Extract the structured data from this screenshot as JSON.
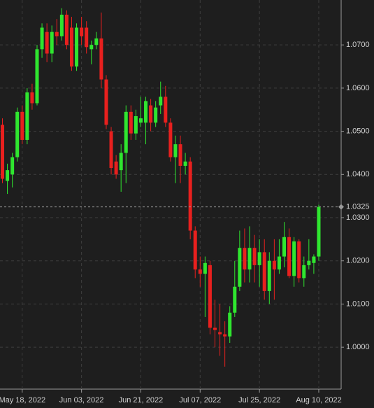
{
  "chart_data": {
    "type": "candlestick",
    "x": [
      "2022-05-12",
      "2022-05-13",
      "2022-05-16",
      "2022-05-17",
      "2022-05-18",
      "2022-05-19",
      "2022-05-20",
      "2022-05-23",
      "2022-05-24",
      "2022-05-25",
      "2022-05-26",
      "2022-05-27",
      "2022-05-30",
      "2022-05-31",
      "2022-06-01",
      "2022-06-02",
      "2022-06-03",
      "2022-06-06",
      "2022-06-07",
      "2022-06-08",
      "2022-06-09",
      "2022-06-10",
      "2022-06-13",
      "2022-06-14",
      "2022-06-15",
      "2022-06-16",
      "2022-06-17",
      "2022-06-20",
      "2022-06-21",
      "2022-06-22",
      "2022-06-23",
      "2022-06-24",
      "2022-06-27",
      "2022-06-28",
      "2022-06-29",
      "2022-06-30",
      "2022-07-01",
      "2022-07-04",
      "2022-07-05",
      "2022-07-06",
      "2022-07-07",
      "2022-07-08",
      "2022-07-11",
      "2022-07-12",
      "2022-07-13",
      "2022-07-14",
      "2022-07-15",
      "2022-07-18",
      "2022-07-19",
      "2022-07-20",
      "2022-07-21",
      "2022-07-22",
      "2022-07-25",
      "2022-07-26",
      "2022-07-27",
      "2022-07-28",
      "2022-07-29",
      "2022-08-01",
      "2022-08-02",
      "2022-08-03",
      "2022-08-04",
      "2022-08-05",
      "2022-08-08",
      "2022-08-09",
      "2022-08-10"
    ],
    "open": [
      1.0515,
      1.0385,
      1.04,
      1.044,
      1.0545,
      1.048,
      1.059,
      1.0565,
      1.069,
      1.073,
      1.068,
      1.073,
      1.072,
      1.077,
      1.074,
      1.065,
      1.074,
      1.074,
      1.069,
      1.07,
      1.0715,
      1.062,
      1.05,
      1.043,
      1.041,
      1.045,
      1.0545,
      1.0495,
      1.052,
      1.052,
      1.056,
      1.052,
      1.056,
      1.058,
      1.052,
      1.044,
      1.047,
      1.042,
      1.043,
      1.027,
      1.018,
      1.017,
      1.019,
      1.0045,
      1.0035,
      1.003,
      1.0025,
      1.008,
      1.014,
      1.023,
      1.018,
      1.023,
      1.019,
      1.022,
      1.013,
      1.02,
      1.018,
      1.021,
      1.0255,
      1.0165,
      1.0245,
      1.016,
      1.019,
      1.0195,
      1.021
    ],
    "high": [
      1.053,
      1.0425,
      1.045,
      1.0555,
      1.056,
      1.06,
      1.061,
      1.07,
      1.075,
      1.075,
      1.0745,
      1.076,
      1.0785,
      1.078,
      1.0765,
      1.075,
      1.0765,
      1.0755,
      1.071,
      1.073,
      1.0775,
      1.063,
      1.051,
      1.0445,
      1.047,
      1.056,
      1.056,
      1.055,
      1.058,
      1.058,
      1.0575,
      1.057,
      1.0615,
      1.0605,
      1.053,
      1.049,
      1.049,
      1.045,
      1.044,
      1.028,
      1.021,
      1.021,
      1.02,
      1.011,
      1.01,
      1.006,
      1.0095,
      1.02,
      1.027,
      1.0275,
      1.028,
      1.026,
      1.025,
      1.025,
      1.022,
      1.025,
      1.025,
      1.029,
      1.0275,
      1.0255,
      1.025,
      1.021,
      1.025,
      1.0215,
      1.033
    ],
    "low": [
      1.038,
      1.0355,
      1.037,
      1.043,
      1.047,
      1.047,
      1.055,
      1.056,
      1.067,
      1.066,
      1.066,
      1.07,
      1.071,
      1.069,
      1.064,
      1.064,
      1.07,
      1.068,
      1.0655,
      1.069,
      1.06,
      1.0505,
      1.04,
      1.039,
      1.036,
      1.038,
      1.048,
      1.048,
      1.051,
      1.047,
      1.05,
      1.051,
      1.054,
      1.051,
      1.043,
      1.038,
      1.038,
      1.04,
      1.025,
      1.016,
      1.014,
      1.007,
      1.003,
      1.0,
      0.998,
      0.9955,
      1.001,
      1.007,
      1.013,
      1.015,
      1.015,
      1.015,
      1.014,
      1.011,
      1.01,
      1.011,
      1.017,
      1.0185,
      1.016,
      1.014,
      1.015,
      1.014,
      1.018,
      1.017,
      1.02
    ],
    "close": [
      1.039,
      1.041,
      1.044,
      1.0545,
      1.048,
      1.059,
      1.0565,
      1.069,
      1.074,
      1.068,
      1.073,
      1.072,
      1.077,
      1.07,
      1.065,
      1.074,
      1.072,
      1.0695,
      1.07,
      1.0715,
      1.062,
      1.0515,
      1.0415,
      1.04,
      1.045,
      1.0545,
      1.0495,
      1.0535,
      1.053,
      1.057,
      1.052,
      1.0555,
      1.058,
      1.052,
      1.044,
      1.047,
      1.042,
      1.043,
      1.027,
      1.018,
      1.017,
      1.0195,
      1.0045,
      1.004,
      1.003,
      1.0025,
      1.008,
      1.014,
      1.023,
      1.018,
      1.023,
      1.019,
      1.022,
      1.013,
      1.02,
      1.018,
      1.021,
      1.0255,
      1.0165,
      1.0245,
      1.016,
      1.019,
      1.02,
      1.021,
      1.0325
    ],
    "up_color": "#2fe62f",
    "down_color": "#e8201e",
    "ylim": [
      0.9903,
      1.0804
    ],
    "yticks": [
      {
        "value": 1.0,
        "label": "1.0000"
      },
      {
        "value": 1.01,
        "label": "1.0100"
      },
      {
        "value": 1.02,
        "label": "1.0200"
      },
      {
        "value": 1.03,
        "label": "1.0300"
      },
      {
        "value": 1.04,
        "label": "1.0400"
      },
      {
        "value": 1.05,
        "label": "1.0500"
      },
      {
        "value": 1.06,
        "label": "1.0600"
      },
      {
        "value": 1.07,
        "label": "1.0700"
      }
    ],
    "xticks": [
      {
        "value": "2022-05-18",
        "label": "May 18, 2022"
      },
      {
        "value": "2022-06-03",
        "label": "Jun 03, 2022"
      },
      {
        "value": "2022-06-21",
        "label": "Jun 21, 2022"
      },
      {
        "value": "2022-07-07",
        "label": "Jul 07, 2022"
      },
      {
        "value": "2022-07-25",
        "label": "Jul 25, 2022"
      },
      {
        "value": "2022-08-10",
        "label": "Aug 10, 2022"
      }
    ],
    "last_price": 1.0325,
    "grid": true
  }
}
